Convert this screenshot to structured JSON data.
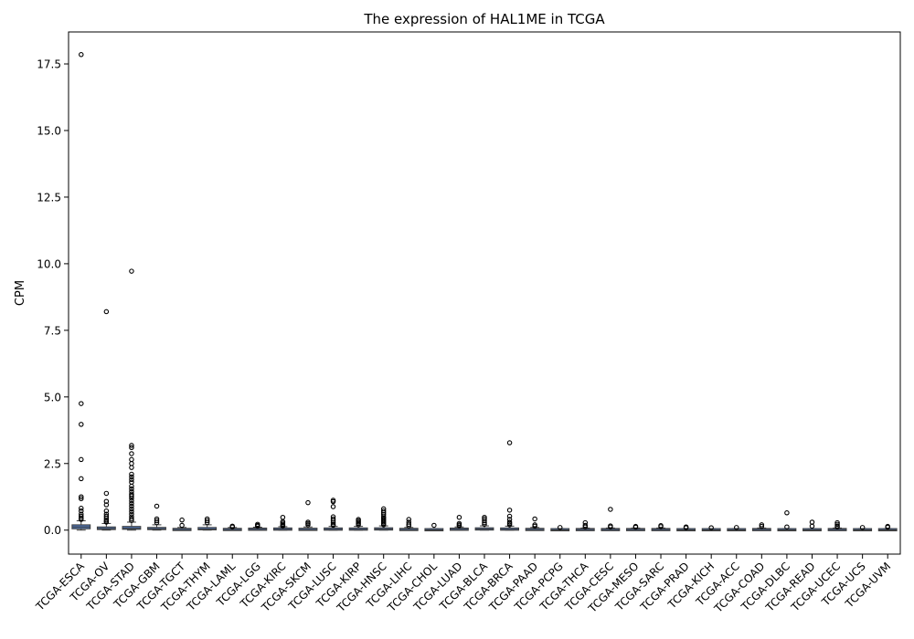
{
  "chart_data": {
    "type": "box",
    "title": "The expression of HAL1ME in TCGA",
    "xlabel": "",
    "ylabel": "CPM",
    "ylim": [
      -0.9,
      18.7
    ],
    "yticks": [
      0.0,
      2.5,
      5.0,
      7.5,
      10.0,
      12.5,
      15.0,
      17.5
    ],
    "ytick_labels": [
      "0.0",
      "2.5",
      "5.0",
      "7.5",
      "10.0",
      "12.5",
      "15.0",
      "17.5"
    ],
    "grid": false,
    "box_color": "#4c72b0",
    "categories": [
      "TCGA-ESCA",
      "TCGA-OV",
      "TCGA-STAD",
      "TCGA-GBM",
      "TCGA-TGCT",
      "TCGA-THYM",
      "TCGA-LAML",
      "TCGA-LGG",
      "TCGA-KIRC",
      "TCGA-SKCM",
      "TCGA-LUSC",
      "TCGA-KIRP",
      "TCGA-HNSC",
      "TCGA-LIHC",
      "TCGA-CHOL",
      "TCGA-LUAD",
      "TCGA-BLCA",
      "TCGA-BRCA",
      "TCGA-PAAD",
      "TCGA-PCPG",
      "TCGA-THCA",
      "TCGA-CESC",
      "TCGA-MESO",
      "TCGA-SARC",
      "TCGA-PRAD",
      "TCGA-KICH",
      "TCGA-ACC",
      "TCGA-COAD",
      "TCGA-DLBC",
      "TCGA-READ",
      "TCGA-UCEC",
      "TCGA-UCS",
      "TCGA-UVM"
    ],
    "boxes": [
      {
        "q1": 0.05,
        "median": 0.12,
        "q3": 0.2,
        "whisker_low": 0.0,
        "whisker_high": 0.35,
        "outliers": [
          17.85,
          4.75,
          3.97,
          2.65,
          1.93,
          1.25,
          1.18,
          0.82,
          0.72,
          0.6,
          0.52,
          0.45,
          0.4
        ]
      },
      {
        "q1": 0.02,
        "median": 0.06,
        "q3": 0.12,
        "whisker_low": 0.0,
        "whisker_high": 0.25,
        "outliers": [
          8.2,
          1.38,
          1.08,
          0.95,
          0.72,
          0.6,
          0.52,
          0.45,
          0.38,
          0.33,
          0.3
        ]
      },
      {
        "q1": 0.03,
        "median": 0.07,
        "q3": 0.14,
        "whisker_low": 0.0,
        "whisker_high": 0.3,
        "outliers": [
          9.72,
          3.18,
          3.1,
          2.87,
          2.65,
          2.5,
          2.35,
          2.1,
          2.0,
          1.9,
          1.8,
          1.65,
          1.55,
          1.45,
          1.35,
          1.28,
          1.2,
          1.1,
          1.0,
          0.9,
          0.8,
          0.7,
          0.6,
          0.5,
          0.42,
          0.36
        ]
      },
      {
        "q1": 0.02,
        "median": 0.05,
        "q3": 0.1,
        "whisker_low": 0.0,
        "whisker_high": 0.2,
        "outliers": [
          0.9,
          0.42,
          0.35,
          0.28
        ]
      },
      {
        "q1": 0.0,
        "median": 0.02,
        "q3": 0.05,
        "whisker_low": 0.0,
        "whisker_high": 0.1,
        "outliers": [
          0.38,
          0.18
        ]
      },
      {
        "q1": 0.01,
        "median": 0.04,
        "q3": 0.1,
        "whisker_low": 0.0,
        "whisker_high": 0.2,
        "outliers": [
          0.42,
          0.35,
          0.28
        ]
      },
      {
        "q1": 0.0,
        "median": 0.02,
        "q3": 0.05,
        "whisker_low": 0.0,
        "whisker_high": 0.1,
        "outliers": [
          0.15,
          0.12
        ]
      },
      {
        "q1": 0.01,
        "median": 0.03,
        "q3": 0.06,
        "whisker_low": 0.0,
        "whisker_high": 0.11,
        "outliers": [
          0.22,
          0.18,
          0.15
        ]
      },
      {
        "q1": 0.01,
        "median": 0.03,
        "q3": 0.07,
        "whisker_low": 0.0,
        "whisker_high": 0.13,
        "outliers": [
          0.48,
          0.32,
          0.27,
          0.22,
          0.18,
          0.15
        ]
      },
      {
        "q1": 0.0,
        "median": 0.02,
        "q3": 0.06,
        "whisker_low": 0.0,
        "whisker_high": 0.12,
        "outliers": [
          1.03,
          0.3,
          0.25,
          0.2
        ]
      },
      {
        "q1": 0.01,
        "median": 0.03,
        "q3": 0.07,
        "whisker_low": 0.0,
        "whisker_high": 0.14,
        "outliers": [
          1.12,
          1.07,
          0.88,
          0.5,
          0.42,
          0.35,
          0.28,
          0.22,
          0.18
        ]
      },
      {
        "q1": 0.01,
        "median": 0.03,
        "q3": 0.07,
        "whisker_low": 0.0,
        "whisker_high": 0.14,
        "outliers": [
          0.4,
          0.35,
          0.3,
          0.25,
          0.2
        ]
      },
      {
        "q1": 0.01,
        "median": 0.04,
        "q3": 0.08,
        "whisker_low": 0.0,
        "whisker_high": 0.16,
        "outliers": [
          0.8,
          0.72,
          0.65,
          0.58,
          0.5,
          0.45,
          0.4,
          0.35,
          0.3,
          0.25,
          0.2
        ]
      },
      {
        "q1": 0.0,
        "median": 0.02,
        "q3": 0.05,
        "whisker_low": 0.0,
        "whisker_high": 0.1,
        "outliers": [
          0.4,
          0.3,
          0.22,
          0.16
        ]
      },
      {
        "q1": 0.0,
        "median": 0.01,
        "q3": 0.03,
        "whisker_low": 0.0,
        "whisker_high": 0.06,
        "outliers": [
          0.18
        ]
      },
      {
        "q1": 0.01,
        "median": 0.03,
        "q3": 0.06,
        "whisker_low": 0.0,
        "whisker_high": 0.12,
        "outliers": [
          0.48,
          0.25,
          0.2,
          0.16
        ]
      },
      {
        "q1": 0.01,
        "median": 0.04,
        "q3": 0.08,
        "whisker_low": 0.0,
        "whisker_high": 0.16,
        "outliers": [
          0.48,
          0.42,
          0.35,
          0.28,
          0.22
        ]
      },
      {
        "q1": 0.01,
        "median": 0.03,
        "q3": 0.07,
        "whisker_low": 0.0,
        "whisker_high": 0.15,
        "outliers": [
          3.28,
          0.75,
          0.52,
          0.4,
          0.3,
          0.25,
          0.2
        ]
      },
      {
        "q1": 0.0,
        "median": 0.02,
        "q3": 0.05,
        "whisker_low": 0.0,
        "whisker_high": 0.1,
        "outliers": [
          0.42,
          0.2,
          0.15
        ]
      },
      {
        "q1": 0.0,
        "median": 0.01,
        "q3": 0.03,
        "whisker_low": 0.0,
        "whisker_high": 0.06,
        "outliers": [
          0.1
        ]
      },
      {
        "q1": 0.0,
        "median": 0.02,
        "q3": 0.04,
        "whisker_low": 0.0,
        "whisker_high": 0.08,
        "outliers": [
          0.28,
          0.18,
          0.12
        ]
      },
      {
        "q1": 0.0,
        "median": 0.02,
        "q3": 0.04,
        "whisker_low": 0.0,
        "whisker_high": 0.08,
        "outliers": [
          0.78,
          0.16,
          0.12
        ]
      },
      {
        "q1": 0.0,
        "median": 0.02,
        "q3": 0.04,
        "whisker_low": 0.0,
        "whisker_high": 0.08,
        "outliers": [
          0.14,
          0.11
        ]
      },
      {
        "q1": 0.0,
        "median": 0.02,
        "q3": 0.04,
        "whisker_low": 0.0,
        "whisker_high": 0.08,
        "outliers": [
          0.17,
          0.13
        ]
      },
      {
        "q1": 0.0,
        "median": 0.01,
        "q3": 0.03,
        "whisker_low": 0.0,
        "whisker_high": 0.06,
        "outliers": [
          0.12,
          0.09
        ]
      },
      {
        "q1": 0.0,
        "median": 0.01,
        "q3": 0.03,
        "whisker_low": 0.0,
        "whisker_high": 0.06,
        "outliers": [
          0.09
        ]
      },
      {
        "q1": 0.0,
        "median": 0.01,
        "q3": 0.03,
        "whisker_low": 0.0,
        "whisker_high": 0.06,
        "outliers": [
          0.1
        ]
      },
      {
        "q1": 0.0,
        "median": 0.02,
        "q3": 0.04,
        "whisker_low": 0.0,
        "whisker_high": 0.08,
        "outliers": [
          0.2,
          0.14
        ]
      },
      {
        "q1": 0.0,
        "median": 0.01,
        "q3": 0.03,
        "whisker_low": 0.0,
        "whisker_high": 0.06,
        "outliers": [
          0.65,
          0.12
        ]
      },
      {
        "q1": 0.0,
        "median": 0.01,
        "q3": 0.03,
        "whisker_low": 0.0,
        "whisker_high": 0.06,
        "outliers": [
          0.3,
          0.15
        ]
      },
      {
        "q1": 0.0,
        "median": 0.02,
        "q3": 0.04,
        "whisker_low": 0.0,
        "whisker_high": 0.08,
        "outliers": [
          0.28,
          0.22,
          0.16,
          0.12
        ]
      },
      {
        "q1": 0.0,
        "median": 0.01,
        "q3": 0.03,
        "whisker_low": 0.0,
        "whisker_high": 0.06,
        "outliers": [
          0.1
        ]
      },
      {
        "q1": 0.0,
        "median": 0.01,
        "q3": 0.03,
        "whisker_low": 0.0,
        "whisker_high": 0.06,
        "outliers": [
          0.14,
          0.11
        ]
      }
    ]
  }
}
